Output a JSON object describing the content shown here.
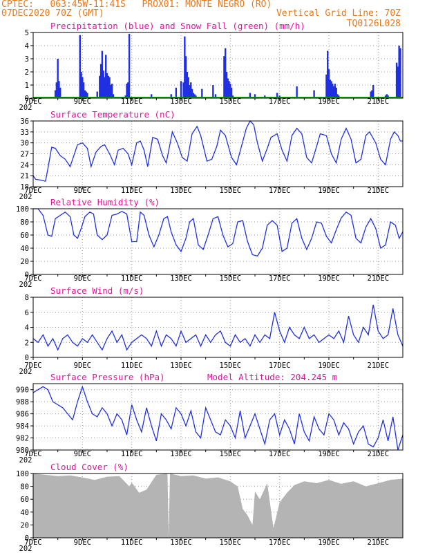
{
  "header": {
    "line1": "CPTEC:   063:45W-11:41S   PROX01: MONTE NEGRO (RO)",
    "line2_left": "07DEC2020 70Z (GMT)",
    "line2_right": "Vertical Grid Line: 70Z",
    "line3_right": "TQ0126L028"
  },
  "colors": {
    "header": "#e8781a",
    "panel_title": "#e0149a",
    "series": "#2030e0",
    "snow": "#20a020",
    "cloud": "#b4b4b4",
    "grid": "#999999"
  },
  "x_tick_labels": [
    "7DEC",
    "9DEC",
    "11DEC",
    "13DEC",
    "15DEC",
    "17DEC",
    "19DEC",
    "21DEC"
  ],
  "x_year_fragment": "202",
  "chart_data": [
    {
      "type": "bar",
      "title": "Precipitation (blue) and Snow Fall (green) (mm/h)",
      "x_range": [
        7.0,
        22.0
      ],
      "ylim": [
        0,
        5
      ],
      "yticks": [
        0,
        1,
        2,
        3,
        4,
        5
      ],
      "grid": true,
      "series": [
        {
          "name": "Precipitation",
          "color": "#2030e0",
          "x": [
            7.9,
            7.95,
            8.0,
            8.05,
            8.1,
            8.9,
            8.95,
            9.0,
            9.05,
            9.1,
            9.15,
            9.2,
            9.6,
            9.7,
            9.75,
            9.8,
            9.85,
            9.9,
            9.95,
            10.0,
            10.05,
            10.1,
            10.15,
            10.2,
            10.25,
            10.75,
            10.8,
            10.85,
            10.9,
            11.8,
            12.4,
            12.6,
            12.8,
            13.0,
            13.1,
            13.15,
            13.2,
            13.25,
            13.3,
            13.35,
            13.4,
            13.45,
            13.5,
            13.55,
            13.6,
            13.85,
            14.3,
            14.4,
            14.75,
            14.8,
            14.85,
            14.9,
            14.95,
            15.0,
            15.05,
            15.1,
            15.8,
            15.9,
            16.0,
            16.4,
            16.9,
            17.0,
            17.5,
            17.7,
            18.4,
            18.9,
            18.95,
            19.0,
            19.05,
            19.1,
            19.15,
            19.2,
            19.25,
            19.3,
            19.35,
            19.4,
            20.7,
            20.75,
            20.8,
            21.3,
            21.35,
            21.4,
            21.75,
            21.8,
            21.85,
            21.9
          ],
          "values": [
            0.6,
            1.2,
            3.0,
            1.3,
            0.8,
            4.8,
            2.0,
            1.6,
            1.2,
            0.6,
            0.5,
            0.4,
            0.5,
            1.7,
            2.6,
            3.6,
            2.1,
            1.6,
            3.3,
            1.9,
            1.7,
            1.6,
            1.0,
            1.1,
            0.3,
            0.2,
            1.1,
            1.2,
            4.9,
            0.3,
            0.1,
            0.3,
            0.8,
            1.3,
            1.2,
            4.7,
            3.2,
            2.0,
            1.6,
            1.0,
            1.2,
            0.7,
            0.4,
            0.3,
            0.2,
            0.7,
            1.0,
            0.3,
            3.2,
            3.8,
            2.0,
            1.5,
            1.3,
            1.1,
            0.8,
            0.2,
            0.4,
            0.1,
            0.3,
            0.2,
            0.4,
            0.2,
            0.1,
            0.9,
            0.6,
            1.8,
            3.6,
            2.2,
            1.4,
            1.3,
            1.1,
            0.9,
            1.1,
            0.8,
            0.3,
            0.2,
            0.5,
            0.6,
            1.0,
            0.2,
            0.3,
            0.2,
            2.7,
            2.4,
            4.0,
            3.8
          ]
        },
        {
          "name": "Snow Fall",
          "color": "#20a020",
          "x": [
            7.0,
            22.0
          ],
          "values": [
            0,
            0
          ]
        }
      ]
    },
    {
      "type": "line",
      "title": "Surface Temperature (nC)",
      "x_range": [
        7.0,
        22.0
      ],
      "ylim": [
        18,
        36
      ],
      "yticks": [
        18,
        21,
        24,
        27,
        30,
        33,
        36
      ],
      "grid": true,
      "series": [
        {
          "color": "#2030e0",
          "x": [
            7.0,
            7.1,
            7.3,
            7.5,
            7.6,
            7.75,
            7.9,
            8.1,
            8.3,
            8.5,
            8.65,
            8.8,
            9.0,
            9.2,
            9.35,
            9.55,
            9.75,
            9.9,
            10.1,
            10.3,
            10.45,
            10.65,
            10.85,
            11.0,
            11.2,
            11.35,
            11.5,
            11.65,
            11.85,
            12.05,
            12.25,
            12.4,
            12.65,
            12.85,
            13.05,
            13.25,
            13.45,
            13.65,
            13.8,
            14.05,
            14.25,
            14.45,
            14.6,
            14.8,
            15.05,
            15.25,
            15.45,
            15.65,
            15.8,
            15.95,
            16.1,
            16.3,
            16.5,
            16.65,
            16.9,
            17.1,
            17.3,
            17.5,
            17.7,
            17.9,
            18.1,
            18.3,
            18.5,
            18.65,
            18.9,
            19.1,
            19.3,
            19.5,
            19.7,
            19.9,
            20.1,
            20.3,
            20.5,
            20.65,
            20.9,
            21.1,
            21.3,
            21.5,
            21.65,
            21.8,
            21.9,
            22.0
          ],
          "values": [
            21,
            20,
            19.8,
            19.5,
            23,
            28.8,
            28.5,
            26.5,
            25.5,
            23.5,
            26.5,
            29.5,
            30,
            28.5,
            23.5,
            27.5,
            29,
            29.5,
            27,
            24,
            28,
            28.5,
            27,
            24,
            30,
            30.5,
            28,
            23.5,
            31.5,
            31,
            26.5,
            24.5,
            33,
            30,
            26,
            25,
            32.5,
            34.5,
            32,
            25,
            25.5,
            29,
            33.5,
            32,
            26,
            24,
            29,
            34,
            36,
            35,
            30,
            25,
            28.5,
            31.5,
            32.5,
            28,
            25,
            32,
            34,
            32.5,
            26,
            24.5,
            29,
            32.5,
            32,
            27,
            24.5,
            31,
            34,
            31,
            24.5,
            25.5,
            32,
            33,
            30,
            25.5,
            24,
            31,
            33,
            32,
            30.5,
            30.5
          ]
        }
      ]
    },
    {
      "type": "line",
      "title": "Relative Humidity (%)",
      "x_range": [
        7.0,
        22.0
      ],
      "ylim": [
        0,
        100
      ],
      "yticks": [
        0,
        20,
        40,
        60,
        80,
        100
      ],
      "grid": true,
      "series": [
        {
          "color": "#2030e0",
          "x": [
            7.0,
            7.2,
            7.4,
            7.6,
            7.75,
            7.9,
            8.1,
            8.3,
            8.5,
            8.65,
            8.8,
            8.95,
            9.1,
            9.3,
            9.45,
            9.6,
            9.8,
            10.0,
            10.2,
            10.4,
            10.6,
            10.8,
            11.0,
            11.2,
            11.35,
            11.5,
            11.7,
            11.9,
            12.1,
            12.3,
            12.45,
            12.6,
            12.8,
            13.0,
            13.2,
            13.35,
            13.5,
            13.7,
            13.9,
            14.1,
            14.3,
            14.5,
            14.7,
            14.9,
            15.1,
            15.3,
            15.5,
            15.7,
            15.9,
            16.1,
            16.3,
            16.5,
            16.7,
            16.9,
            17.1,
            17.3,
            17.5,
            17.7,
            17.9,
            18.1,
            18.3,
            18.5,
            18.7,
            18.9,
            19.1,
            19.3,
            19.5,
            19.7,
            19.9,
            20.1,
            20.3,
            20.5,
            20.7,
            20.9,
            21.1,
            21.3,
            21.5,
            21.7,
            21.85,
            22.0
          ],
          "values": [
            100,
            100,
            90,
            60,
            58,
            85,
            90,
            95,
            88,
            60,
            55,
            70,
            88,
            95,
            92,
            60,
            53,
            60,
            90,
            92,
            96,
            92,
            50,
            50,
            95,
            90,
            60,
            42,
            60,
            85,
            88,
            65,
            45,
            35,
            55,
            80,
            85,
            45,
            38,
            60,
            85,
            88,
            60,
            42,
            47,
            80,
            82,
            50,
            30,
            28,
            40,
            75,
            82,
            75,
            35,
            40,
            78,
            85,
            55,
            38,
            55,
            80,
            78,
            58,
            48,
            68,
            86,
            95,
            90,
            55,
            48,
            72,
            85,
            70,
            40,
            45,
            80,
            75,
            55,
            65
          ]
        }
      ]
    },
    {
      "type": "line",
      "title": "Surface Wind (m/s)",
      "x_range": [
        7.0,
        22.0
      ],
      "ylim": [
        0,
        8
      ],
      "yticks": [
        0,
        2,
        4,
        6,
        8
      ],
      "grid": true,
      "series": [
        {
          "color": "#2030e0",
          "x": [
            7.0,
            7.2,
            7.4,
            7.6,
            7.8,
            8.0,
            8.2,
            8.4,
            8.6,
            8.8,
            9.0,
            9.2,
            9.4,
            9.6,
            9.8,
            10.0,
            10.2,
            10.4,
            10.6,
            10.8,
            11.0,
            11.2,
            11.4,
            11.6,
            11.8,
            12.0,
            12.2,
            12.4,
            12.6,
            12.8,
            13.0,
            13.2,
            13.4,
            13.6,
            13.8,
            14.0,
            14.2,
            14.4,
            14.6,
            14.8,
            15.0,
            15.2,
            15.4,
            15.6,
            15.8,
            16.0,
            16.2,
            16.4,
            16.6,
            16.8,
            17.0,
            17.2,
            17.4,
            17.6,
            17.8,
            18.0,
            18.2,
            18.4,
            18.6,
            18.8,
            19.0,
            19.2,
            19.4,
            19.6,
            19.8,
            20.0,
            20.2,
            20.4,
            20.6,
            20.8,
            21.0,
            21.2,
            21.4,
            21.6,
            21.8,
            22.0
          ],
          "values": [
            2.5,
            2.0,
            3.0,
            1.5,
            2.5,
            1.0,
            2.5,
            3.0,
            2.0,
            1.5,
            2.5,
            2.0,
            3.0,
            2.0,
            1.0,
            2.5,
            3.5,
            2.0,
            3.0,
            1.0,
            2.0,
            2.5,
            3.0,
            2.5,
            1.5,
            3.5,
            1.5,
            3.0,
            2.5,
            1.5,
            3.5,
            2.0,
            2.5,
            3.0,
            1.5,
            3.0,
            2.0,
            3.0,
            3.5,
            2.0,
            1.5,
            3.0,
            2.0,
            2.5,
            1.5,
            3.0,
            2.0,
            3.0,
            2.5,
            6.0,
            3.5,
            2.0,
            4.0,
            3.0,
            2.5,
            4.0,
            2.5,
            3.0,
            2.0,
            2.5,
            3.0,
            2.5,
            3.5,
            2.0,
            5.5,
            3.0,
            2.0,
            4.0,
            3.0,
            7.0,
            3.5,
            2.5,
            3.0,
            6.5,
            3.0,
            1.5
          ]
        }
      ]
    },
    {
      "type": "line",
      "title": "Surface Pressure (hPa)",
      "subtitle": "Model Altitude: 204.245  m",
      "x_range": [
        7.0,
        22.0
      ],
      "ylim": [
        980,
        991
      ],
      "yticks": [
        980,
        982,
        984,
        986,
        988,
        990
      ],
      "grid": true,
      "series": [
        {
          "color": "#2030e0",
          "x": [
            7.0,
            7.2,
            7.4,
            7.6,
            7.8,
            8.0,
            8.2,
            8.4,
            8.6,
            8.8,
            9.0,
            9.2,
            9.4,
            9.6,
            9.8,
            10.0,
            10.2,
            10.4,
            10.6,
            10.8,
            11.0,
            11.2,
            11.4,
            11.6,
            11.8,
            12.0,
            12.2,
            12.4,
            12.6,
            12.8,
            13.0,
            13.2,
            13.4,
            13.6,
            13.8,
            14.0,
            14.2,
            14.4,
            14.6,
            14.8,
            15.0,
            15.2,
            15.4,
            15.6,
            15.8,
            16.0,
            16.2,
            16.4,
            16.6,
            16.8,
            17.0,
            17.2,
            17.4,
            17.6,
            17.8,
            18.0,
            18.2,
            18.4,
            18.6,
            18.8,
            19.0,
            19.2,
            19.4,
            19.6,
            19.8,
            20.0,
            20.2,
            20.4,
            20.6,
            20.8,
            21.0,
            21.2,
            21.4,
            21.6,
            21.8,
            22.0
          ],
          "values": [
            989.5,
            990,
            990.5,
            990,
            988,
            987.5,
            987,
            986,
            985,
            988,
            990.5,
            988,
            986,
            985.5,
            987,
            986,
            984,
            986,
            985,
            982.5,
            987.5,
            985,
            983,
            987,
            984,
            981.5,
            986,
            985,
            983.5,
            987,
            986,
            984,
            986.5,
            983,
            982,
            987,
            985,
            983,
            982.5,
            985,
            984,
            982,
            986.5,
            982,
            984,
            986,
            983.5,
            981,
            985,
            986,
            982.5,
            985,
            983.5,
            981,
            986,
            983,
            981.5,
            985.5,
            983.5,
            982.5,
            986,
            985,
            982.5,
            984.5,
            983.5,
            981,
            983,
            984,
            981,
            980.5,
            982,
            985,
            981.5,
            985.5,
            980,
            982.5
          ]
        }
      ]
    },
    {
      "type": "area",
      "title": "Cloud Cover (%)",
      "x_range": [
        7.0,
        22.0
      ],
      "ylim": [
        0,
        100
      ],
      "yticks": [
        0,
        20,
        40,
        60,
        80,
        100
      ],
      "grid": true,
      "series": [
        {
          "color": "#b4b4b4",
          "x": [
            7.0,
            7.5,
            8.0,
            8.5,
            9.0,
            9.5,
            10.0,
            10.5,
            10.9,
            11.0,
            11.3,
            11.6,
            12.0,
            12.45,
            12.5,
            12.55,
            13.0,
            13.5,
            14.0,
            14.5,
            15.0,
            15.3,
            15.5,
            15.7,
            15.9,
            16.0,
            16.2,
            16.5,
            16.75,
            17.0,
            17.3,
            17.6,
            18.0,
            18.5,
            19.0,
            19.5,
            20.0,
            20.5,
            21.0,
            21.5,
            22.0
          ],
          "values": [
            100,
            98,
            96,
            97,
            94,
            90,
            95,
            96,
            80,
            86,
            70,
            75,
            98,
            100,
            2,
            100,
            96,
            97,
            92,
            94,
            88,
            80,
            45,
            35,
            20,
            72,
            60,
            85,
            15,
            55,
            70,
            82,
            88,
            85,
            90,
            84,
            88,
            80,
            85,
            90,
            92
          ]
        }
      ]
    }
  ]
}
